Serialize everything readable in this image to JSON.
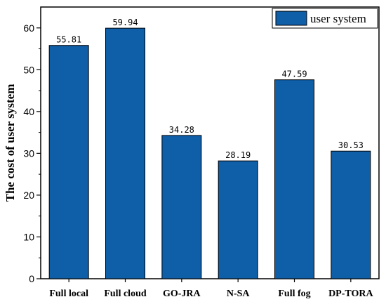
{
  "chart_data": {
    "type": "bar",
    "title": "",
    "xlabel": "",
    "ylabel": "The cost of user system",
    "categories": [
      "Full local",
      "Full cloud",
      "GO-JRA",
      "N-SA",
      "Full fog",
      "DP-TORA"
    ],
    "series": [
      {
        "name": "user system",
        "values": [
          55.81,
          59.94,
          34.28,
          28.19,
          47.59,
          30.53
        ]
      }
    ],
    "data_labels": [
      "55.81",
      "59.94",
      "34.28",
      "28.19",
      "47.59",
      "30.53"
    ],
    "ylim": [
      0,
      65
    ],
    "yticks": [
      0,
      10,
      20,
      30,
      40,
      50,
      60
    ],
    "ytick_labels": [
      "0",
      "10",
      "20",
      "30",
      "40",
      "50",
      "60"
    ],
    "grid": false,
    "legend_position": "top-right",
    "bar_color": "#0f5ea8",
    "bar_edge_color": "#000000"
  }
}
